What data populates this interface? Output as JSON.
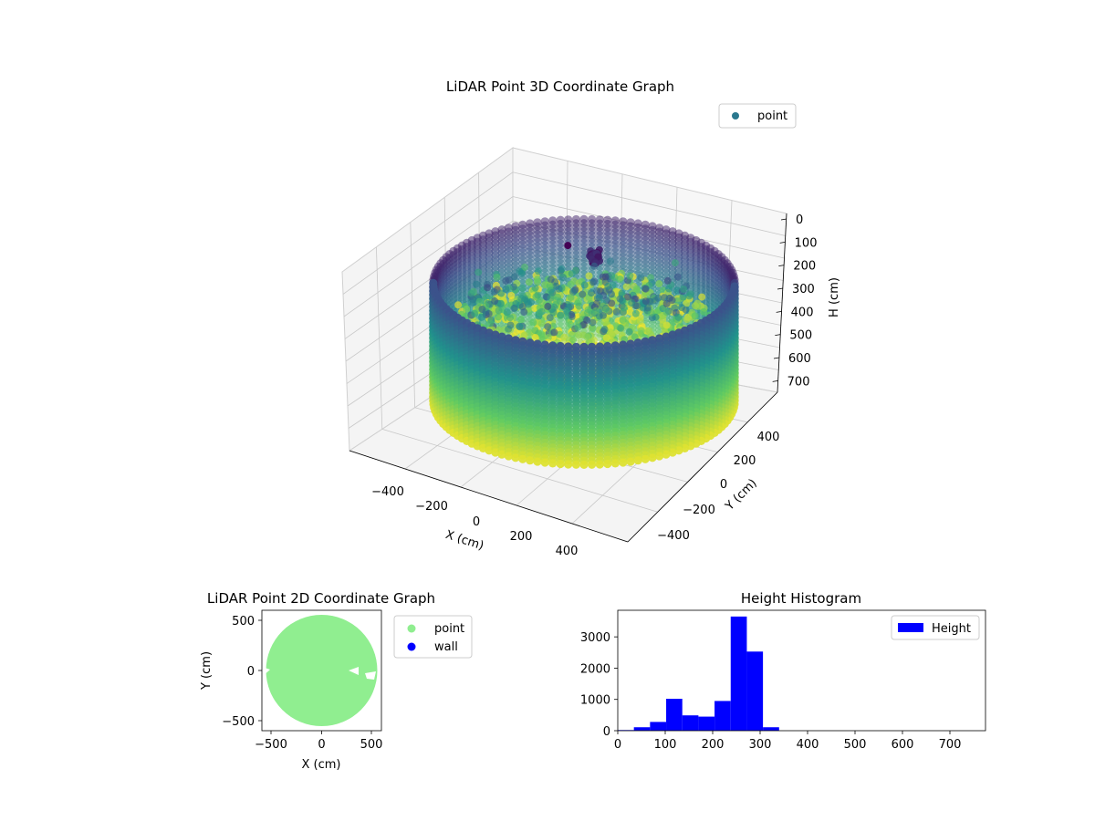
{
  "chart_data": [
    {
      "type": "scatter",
      "projection": "3d",
      "title": "LiDAR Point 3D Coordinate Graph",
      "xlabel": "X (cm)",
      "ylabel": "Y (cm)",
      "zlabel": "H (cm)",
      "xticks": [
        "−400",
        "−200",
        "0",
        "200",
        "400"
      ],
      "yticks": [
        "−400",
        "−200",
        "0",
        "200",
        "400"
      ],
      "zticks": [
        "0",
        "100",
        "200",
        "300",
        "400",
        "500",
        "600",
        "700"
      ],
      "zlim": [
        750,
        0
      ],
      "colormap": "viridis",
      "legend": {
        "position": "top-right",
        "entries": [
          {
            "label": "point",
            "color": "#2a788e"
          }
        ]
      },
      "wall": {
        "shape": "cylinder",
        "radius": 560,
        "h_top": 0,
        "h_bottom": 600
      },
      "grid": true
    },
    {
      "type": "scatter",
      "title": "LiDAR Point 2D Coordinate Graph",
      "xlabel": "X (cm)",
      "ylabel": "Y (cm)",
      "xticks": [
        "−500",
        "0",
        "500"
      ],
      "yticks": [
        "−500",
        "0",
        "500"
      ],
      "xlim": [
        -600,
        600
      ],
      "ylim": [
        -600,
        600
      ],
      "legend": {
        "position": "outside-right",
        "entries": [
          {
            "label": "point",
            "color": "#90ee90"
          },
          {
            "label": "wall",
            "color": "#0000ff"
          }
        ]
      },
      "series": [
        {
          "name": "point",
          "shape": "filled-disc",
          "radius": 560,
          "color": "#90ee90"
        }
      ]
    },
    {
      "type": "bar",
      "title": "Height Histogram",
      "xlim": [
        0,
        775
      ],
      "ylim": [
        0,
        3850
      ],
      "xticks": [
        "0",
        "100",
        "200",
        "300",
        "400",
        "500",
        "600",
        "700"
      ],
      "yticks": [
        "0",
        "1000",
        "2000",
        "3000"
      ],
      "bin_width": 34,
      "bins": [
        0,
        34,
        68,
        102,
        136,
        170,
        204,
        238,
        272,
        306
      ],
      "values": [
        20,
        110,
        280,
        1020,
        490,
        450,
        950,
        3650,
        2530,
        110
      ],
      "color": "#0000ff",
      "legend": {
        "position": "top-right",
        "entries": [
          {
            "label": "Height",
            "color": "#0000ff"
          }
        ]
      }
    }
  ]
}
